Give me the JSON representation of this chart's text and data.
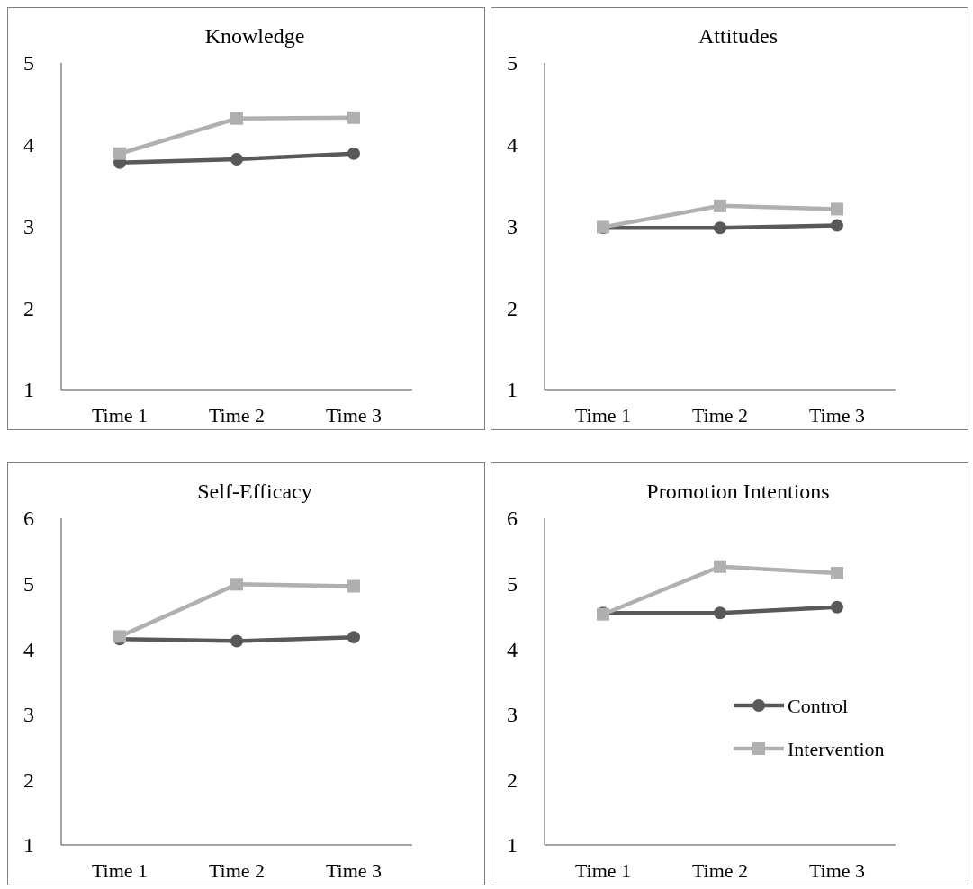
{
  "chart_data": [
    {
      "type": "line",
      "title": "Knowledge",
      "categories": [
        "Time 1",
        "Time 2",
        "Time 3"
      ],
      "ylim": [
        1,
        5
      ],
      "yticks": [
        1,
        2,
        3,
        4,
        5
      ],
      "grid": false,
      "legend": false,
      "series": [
        {
          "color": "#595959",
          "marker": "circle",
          "values": [
            3.78,
            3.82,
            3.89
          ]
        },
        {
          "color": "#b0b0b0",
          "marker": "square",
          "values": [
            3.89,
            4.32,
            4.33
          ]
        }
      ]
    },
    {
      "type": "line",
      "title": "Attitudes",
      "categories": [
        "Time 1",
        "Time 2",
        "Time 3"
      ],
      "ylim": [
        1,
        5
      ],
      "yticks": [
        1,
        2,
        3,
        4,
        5
      ],
      "grid": false,
      "legend": false,
      "series": [
        {
          "color": "#595959",
          "marker": "circle",
          "values": [
            2.98,
            2.98,
            3.01
          ]
        },
        {
          "color": "#b0b0b0",
          "marker": "square",
          "values": [
            2.99,
            3.25,
            3.21
          ]
        }
      ]
    },
    {
      "type": "line",
      "title": "Self-Efficacy",
      "categories": [
        "Time 1",
        "Time 2",
        "Time 3"
      ],
      "ylim": [
        1,
        6
      ],
      "yticks": [
        1,
        2,
        3,
        4,
        5,
        6
      ],
      "grid": false,
      "legend": false,
      "series": [
        {
          "color": "#595959",
          "marker": "circle",
          "values": [
            4.15,
            4.12,
            4.18
          ]
        },
        {
          "color": "#b0b0b0",
          "marker": "square",
          "values": [
            4.19,
            4.99,
            4.96
          ]
        }
      ]
    },
    {
      "type": "line",
      "title": "Promotion Intentions",
      "categories": [
        "Time 1",
        "Time 2",
        "Time 3"
      ],
      "ylim": [
        1,
        6
      ],
      "yticks": [
        1,
        2,
        3,
        4,
        5,
        6
      ],
      "grid": false,
      "legend": "right",
      "series": [
        {
          "name": "Control",
          "color": "#595959",
          "marker": "circle",
          "values": [
            4.55,
            4.55,
            4.64
          ]
        },
        {
          "name": "Intervention",
          "color": "#b0b0b0",
          "marker": "square",
          "values": [
            4.53,
            5.26,
            5.16
          ]
        }
      ]
    }
  ]
}
